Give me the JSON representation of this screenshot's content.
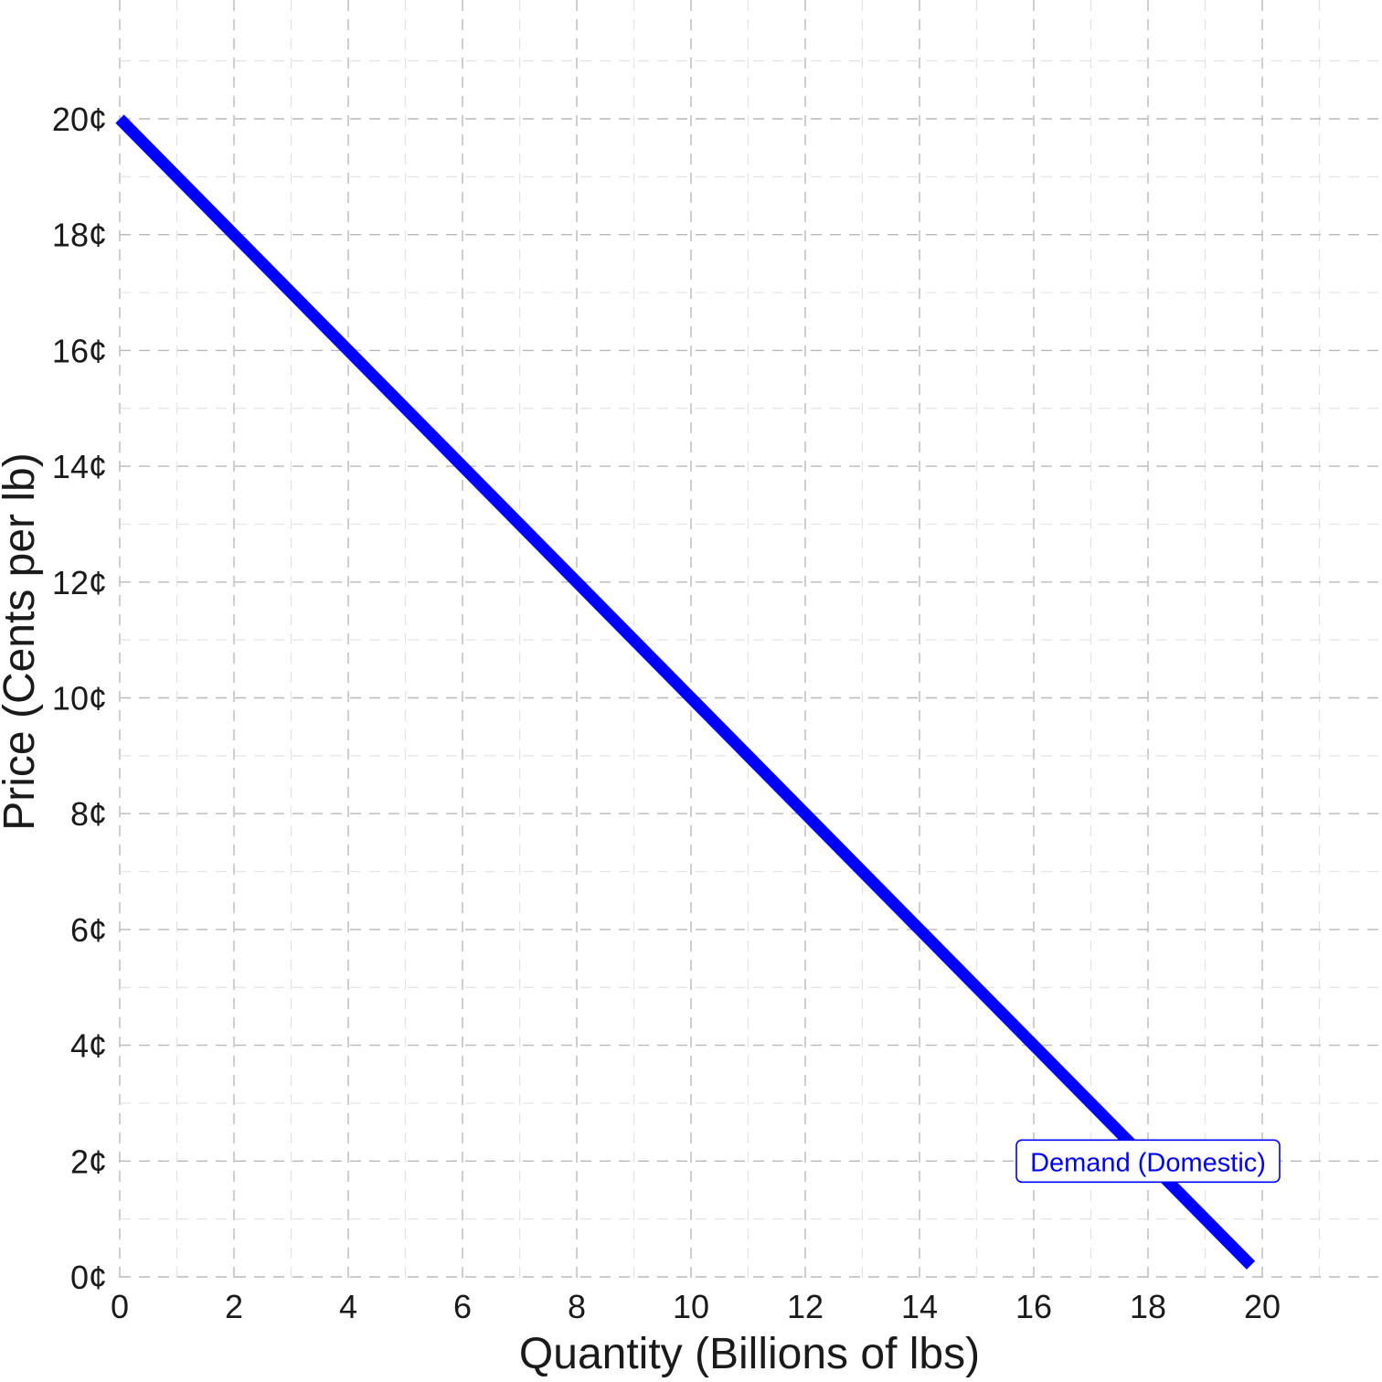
{
  "chart_data": {
    "type": "line",
    "title": "",
    "xlabel": "Quantity (Billions of lbs)",
    "ylabel": "Price (Cents per lb)",
    "xlim": [
      0,
      21.8
    ],
    "ylim": [
      0,
      21.1
    ],
    "x_ticks": [
      0,
      2,
      4,
      6,
      8,
      10,
      12,
      14,
      16,
      18,
      20
    ],
    "x_tick_labels": [
      "0",
      "2",
      "4",
      "6",
      "8",
      "10",
      "12",
      "14",
      "16",
      "18",
      "20"
    ],
    "y_ticks": [
      0,
      2,
      4,
      6,
      8,
      10,
      12,
      14,
      16,
      18,
      20
    ],
    "y_tick_labels": [
      "0¢",
      "2¢",
      "4¢",
      "6¢",
      "8¢",
      "10¢",
      "12¢",
      "14¢",
      "16¢",
      "18¢",
      "20¢"
    ],
    "grid": true,
    "grid_style": "dashed",
    "series": [
      {
        "name": "Demand (Domestic)",
        "color": "#0000ff",
        "x": [
          0,
          19.8
        ],
        "y": [
          20,
          0.2
        ]
      }
    ],
    "annotations": [
      {
        "text": "Demand (Domestic)",
        "x": 18,
        "y": 2,
        "color": "#0000ff",
        "style": "label-box"
      }
    ]
  }
}
